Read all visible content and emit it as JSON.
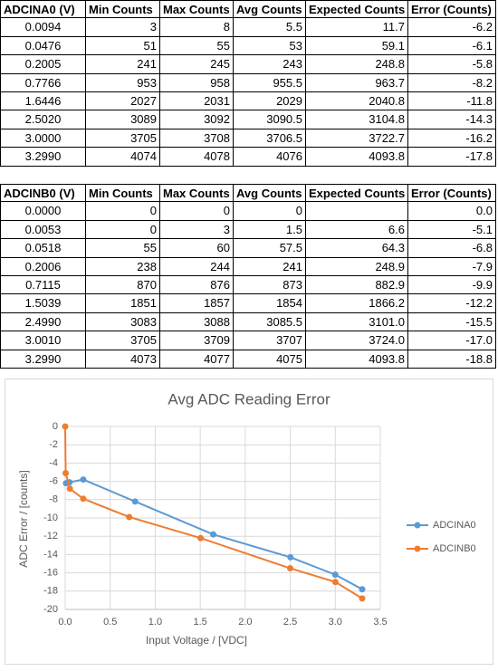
{
  "tables": [
    {
      "header": [
        "ADCINA0 (V)",
        "Min Counts",
        "Max Counts",
        "Avg Counts",
        "Expected Counts",
        "Error (Counts)"
      ],
      "rows": [
        [
          "0.0094",
          "3",
          "8",
          "5.5",
          "11.7",
          "-6.2"
        ],
        [
          "0.0476",
          "51",
          "55",
          "53",
          "59.1",
          "-6.1"
        ],
        [
          "0.2005",
          "241",
          "245",
          "243",
          "248.8",
          "-5.8"
        ],
        [
          "0.7766",
          "953",
          "958",
          "955.5",
          "963.7",
          "-8.2"
        ],
        [
          "1.6446",
          "2027",
          "2031",
          "2029",
          "2040.8",
          "-11.8"
        ],
        [
          "2.5020",
          "3089",
          "3092",
          "3090.5",
          "3104.8",
          "-14.3"
        ],
        [
          "3.0000",
          "3705",
          "3708",
          "3706.5",
          "3722.7",
          "-16.2"
        ],
        [
          "3.2990",
          "4074",
          "4078",
          "4076",
          "4093.8",
          "-17.8"
        ]
      ]
    },
    {
      "header": [
        "ADCINB0 (V)",
        "Min Counts",
        "Max Counts",
        "Avg Counts",
        "Expected Counts",
        "Error (Counts)"
      ],
      "rows": [
        [
          "0.0000",
          "0",
          "0",
          "0",
          null,
          "0.0"
        ],
        [
          "0.0053",
          "0",
          "3",
          "1.5",
          "6.6",
          "-5.1"
        ],
        [
          "0.0518",
          "55",
          "60",
          "57.5",
          "64.3",
          "-6.8"
        ],
        [
          "0.2006",
          "238",
          "244",
          "241",
          "248.9",
          "-7.9"
        ],
        [
          "0.7115",
          "870",
          "876",
          "873",
          "882.9",
          "-9.9"
        ],
        [
          "1.5039",
          "1851",
          "1857",
          "1854",
          "1866.2",
          "-12.2"
        ],
        [
          "2.4990",
          "3083",
          "3088",
          "3085.5",
          "3101.0",
          "-15.5"
        ],
        [
          "3.0010",
          "3705",
          "3709",
          "3707",
          "3724.0",
          "-17.0"
        ],
        [
          "3.2990",
          "4073",
          "4077",
          "4075",
          "4093.8",
          "-18.8"
        ]
      ]
    }
  ],
  "chart_data": {
    "type": "line",
    "title": "Avg ADC Reading Error",
    "x_label": "Input Voltage / [VDC]",
    "y_label": "ADC Error / [counts]",
    "series": [
      {
        "name": "ADCINA0",
        "color": "#5b9bd5",
        "x": [
          0.0094,
          0.0476,
          0.2005,
          0.7766,
          1.6446,
          2.502,
          3.0,
          3.299
        ],
        "values": [
          -6.2,
          -6.1,
          -5.8,
          -8.2,
          -11.8,
          -14.3,
          -16.2,
          -17.8
        ]
      },
      {
        "name": "ADCINB0",
        "color": "#ed7d31",
        "x": [
          0.0,
          0.0053,
          0.0518,
          0.2006,
          0.7115,
          1.5039,
          2.499,
          3.001,
          3.299
        ],
        "values": [
          0.0,
          -5.1,
          -6.8,
          -7.9,
          -9.9,
          -12.2,
          -15.5,
          -17.0,
          -18.8
        ]
      }
    ],
    "xlim": [
      0,
      3.5
    ],
    "xticks": [
      {
        "value": 0,
        "label": "0.0"
      },
      0.5,
      {
        "value": 1,
        "label": "1.0"
      },
      1.5,
      {
        "value": 2,
        "label": "2.0"
      },
      2.5,
      {
        "value": 3,
        "label": "3.0"
      },
      3.5
    ],
    "ylim": [
      -20,
      0
    ],
    "yticks": [
      0,
      -2,
      -4,
      -6,
      -8,
      -10,
      -12,
      -14,
      -16,
      -18,
      -20
    ],
    "grid": true,
    "legend": "right"
  }
}
